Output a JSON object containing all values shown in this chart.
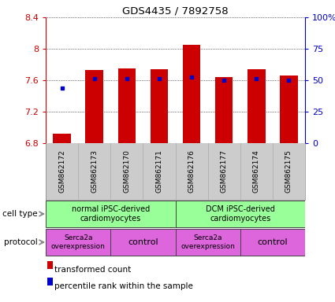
{
  "title": "GDS4435 / 7892758",
  "samples": [
    "GSM862172",
    "GSM862173",
    "GSM862170",
    "GSM862171",
    "GSM862176",
    "GSM862177",
    "GSM862174",
    "GSM862175"
  ],
  "bar_values": [
    6.92,
    7.73,
    7.75,
    7.74,
    8.05,
    7.64,
    7.74,
    7.66
  ],
  "bar_bottom": 6.8,
  "blue_dot_values": [
    7.5,
    7.62,
    7.62,
    7.62,
    7.64,
    7.6,
    7.62,
    7.6
  ],
  "ylim_left": [
    6.8,
    8.4
  ],
  "ylim_right": [
    0,
    100
  ],
  "yticks_left": [
    6.8,
    7.2,
    7.6,
    8.0,
    8.4
  ],
  "ytick_labels_left": [
    "6.8",
    "7.2",
    "7.6",
    "8",
    "8.4"
  ],
  "yticks_right": [
    0,
    25,
    50,
    75,
    100
  ],
  "ytick_labels_right": [
    "0",
    "25",
    "50",
    "75",
    "100%"
  ],
  "bar_color": "#cc0000",
  "blue_dot_color": "#0000cc",
  "sample_bg_color": "#cccccc",
  "cell_type_color": "#99ff99",
  "protocol_color": "#dd66dd",
  "legend_items": [
    {
      "label": "transformed count",
      "color": "#cc0000"
    },
    {
      "label": "percentile rank within the sample",
      "color": "#0000cc"
    }
  ],
  "tick_label_color_left": "#cc0000",
  "tick_label_color_right": "#0000cc",
  "bg_color": "#ffffff"
}
